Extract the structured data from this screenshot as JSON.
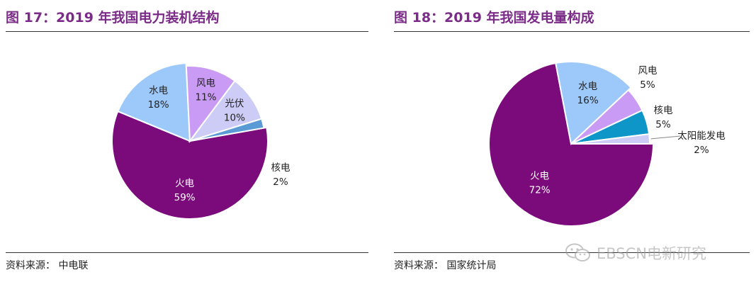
{
  "charts": [
    {
      "title": "图 17：2019 年我国电力装机结构",
      "source": "资料来源：  中电联",
      "chart_data": {
        "type": "pie",
        "title": "图 17：2019 年我国电力装机结构",
        "unit": "%",
        "slices": [
          {
            "name": "火电",
            "value": 59,
            "label": "59%",
            "color": "#7B0A7B",
            "label_color": "#ffffff"
          },
          {
            "name": "水电",
            "value": 18,
            "label": "18%",
            "color": "#9CC8FA",
            "label_color": "#222222"
          },
          {
            "name": "风电",
            "value": 11,
            "label": "11%",
            "color": "#C99BF4",
            "label_color": "#222222"
          },
          {
            "name": "光伏",
            "value": 10,
            "label": "10%",
            "color": "#CCCCF6",
            "label_color": "#222222"
          },
          {
            "name": "核电",
            "value": 2,
            "label": "2%",
            "color": "#5B9BD5",
            "label_color": "#222222"
          }
        ]
      }
    },
    {
      "title": "图 18：2019 年我国发电量构成",
      "source": "资料来源：  国家统计局",
      "chart_data": {
        "type": "pie",
        "title": "图 18：2019 年我国发电量构成",
        "unit": "%",
        "slices": [
          {
            "name": "火电",
            "value": 72,
            "label": "72%",
            "color": "#7B0A7B",
            "label_color": "#ffffff"
          },
          {
            "name": "水电",
            "value": 16,
            "label": "16%",
            "color": "#9CC8FA",
            "label_color": "#222222"
          },
          {
            "name": "风电",
            "value": 5,
            "label": "5%",
            "color": "#C99BF4",
            "label_color": "#222222"
          },
          {
            "name": "核电",
            "value": 5,
            "label": "5%",
            "color": "#0E96C8",
            "label_color": "#222222"
          },
          {
            "name": "太阳能发电",
            "value": 2,
            "label": "2%",
            "color": "#CCCCF6",
            "label_color": "#222222"
          }
        ]
      }
    }
  ],
  "watermark": {
    "text": "EBSCN电新研究",
    "icon": "wechat-icon"
  }
}
